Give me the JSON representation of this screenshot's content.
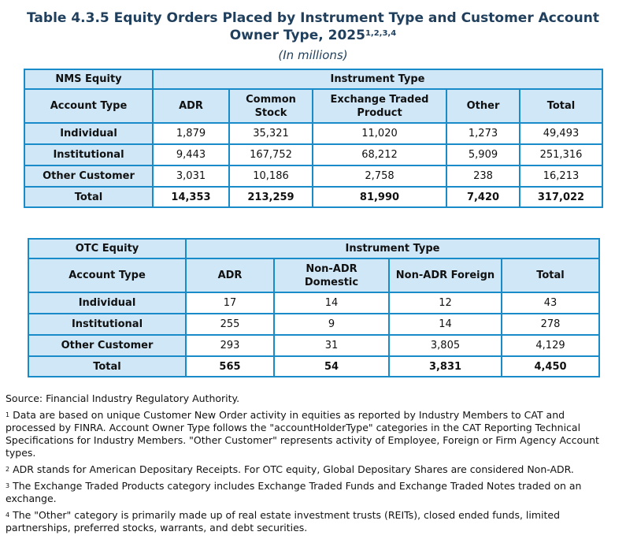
{
  "title": {
    "line1": "Table 4.3.5 Equity Orders Placed by Instrument Type and Customer Account",
    "line2": "Owner Type, 2025",
    "footnote_refs": "1,2,3,4",
    "units": "(In millions)"
  },
  "nms": {
    "corner": "NMS Equity",
    "group_header": "Instrument Type",
    "row_header": "Account Type",
    "columns": [
      "ADR",
      "Common Stock",
      "Exchange Traded Product",
      "Other",
      "Total"
    ],
    "rows": [
      {
        "label": "Individual",
        "values": [
          "1,879",
          "35,321",
          "11,020",
          "1,273",
          "49,493"
        ]
      },
      {
        "label": "Institutional",
        "values": [
          "9,443",
          "167,752",
          "68,212",
          "5,909",
          "251,316"
        ]
      },
      {
        "label": "Other Customer",
        "values": [
          "3,031",
          "10,186",
          "2,758",
          "238",
          "16,213"
        ]
      },
      {
        "label": "Total",
        "values": [
          "14,353",
          "213,259",
          "81,990",
          "7,420",
          "317,022"
        ]
      }
    ]
  },
  "otc": {
    "corner": "OTC Equity",
    "group_header": "Instrument Type",
    "row_header": "Account Type",
    "columns": [
      "ADR",
      "Non-ADR Domestic",
      "Non-ADR Foreign",
      "Total"
    ],
    "rows": [
      {
        "label": "Individual",
        "values": [
          "17",
          "14",
          "12",
          "43"
        ]
      },
      {
        "label": "Institutional",
        "values": [
          "255",
          "9",
          "14",
          "278"
        ]
      },
      {
        "label": "Other Customer",
        "values": [
          "293",
          "31",
          "3,805",
          "4,129"
        ]
      },
      {
        "label": "Total",
        "values": [
          "565",
          "54",
          "3,831",
          "4,450"
        ]
      }
    ]
  },
  "notes": {
    "source": "Source: Financial Industry Regulatory Authority.",
    "items": [
      {
        "num": "1",
        "text": "Data are based on unique Customer New Order activity in equities as reported by Industry Members to CAT and processed by FINRA. Account Owner Type follows the \"accountHolderType\" categories in the CAT Reporting Technical Specifications for Industry Members. \"Other Customer\" represents activity of Employee, Foreign or Firm Agency Account types."
      },
      {
        "num": "2",
        "text": "ADR stands for American Depositary Receipts. For OTC equity, Global Depositary Shares are considered Non-ADR."
      },
      {
        "num": "3",
        "text": "The Exchange Traded Products category includes Exchange Traded Funds and Exchange Traded Notes traded on an exchange."
      },
      {
        "num": "4",
        "text": "The \"Other\" category is primarily made up of real estate investment trusts (REITs), closed ended funds, limited partnerships, preferred stocks, warrants, and debt securities."
      }
    ]
  },
  "colors": {
    "header_bg": "#cfe7f7",
    "border": "#1a8bc9",
    "title": "#1f3f5c"
  }
}
